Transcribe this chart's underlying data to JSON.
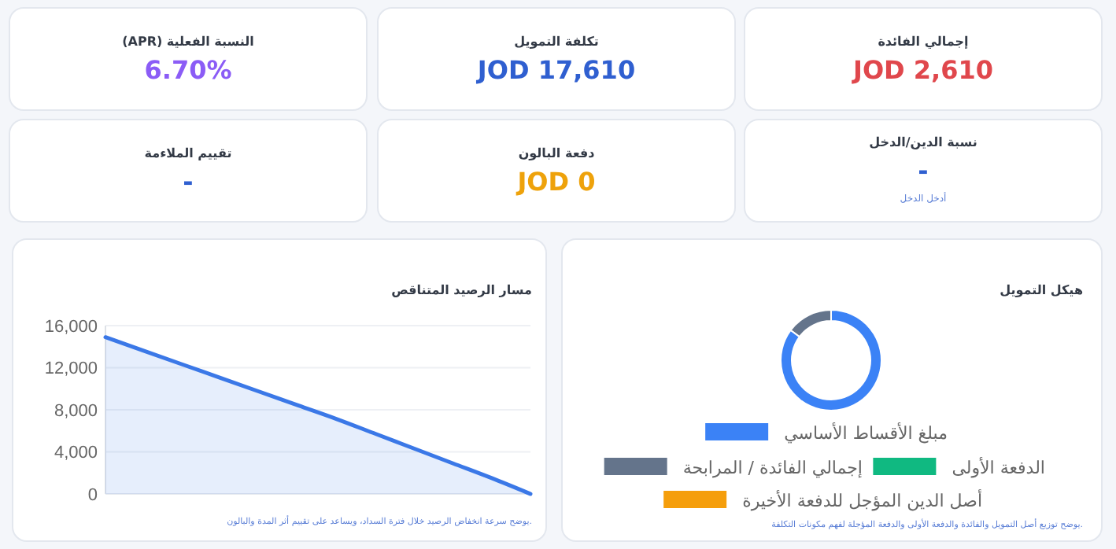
{
  "chart_data": [
    {
      "type": "other",
      "title": "إجمالي الفائدة",
      "annotations": [
        "JOD 2,610"
      ]
    },
    {
      "type": "other",
      "title": "تكلفة التمويل",
      "annotations": [
        "JOD 17,610"
      ]
    },
    {
      "type": "other",
      "title": "النسبة الفعلية (APR)",
      "annotations": [
        "6.70%"
      ]
    },
    {
      "type": "other",
      "title": "نسبة الدين/الدخل",
      "annotations": [
        "-",
        "أدخل الدخل"
      ]
    },
    {
      "type": "other",
      "title": "دفعة البالون",
      "annotations": [
        "JOD 0"
      ]
    },
    {
      "type": "other",
      "title": "تقييم الملاءمة",
      "annotations": [
        "-"
      ]
    },
    {
      "type": "area",
      "title": "مسار الرصيد المتناقص",
      "categories": [
        null,
        null,
        null,
        null,
        null,
        null,
        null,
        null,
        null,
        null,
        null,
        null
      ],
      "values": [
        14900,
        13600,
        12300,
        11000,
        9700,
        8400,
        7100,
        5700,
        4300,
        2900,
        1500,
        0
      ],
      "color": "#3b78e7",
      "ylim": [
        0,
        16000
      ],
      "yticks": [
        {
          "value": 0,
          "label": "0"
        },
        {
          "value": 4000,
          "label": "4,000"
        },
        {
          "value": 8000,
          "label": "8,000"
        },
        {
          "value": 12000,
          "label": "12,000"
        },
        {
          "value": 16000,
          "label": "16,000"
        }
      ],
      "grid": "y",
      "tick_labels": "y",
      "legend": false,
      "annotations": [
        "يوضح سرعة انخفاض الرصيد خلال فترة السداد، ويساعد على تقييم أثر المدة والبالون."
      ]
    },
    {
      "type": "donut",
      "title": "هيكل التمويل",
      "categories": [
        "مبلغ الأقساط الأساسي",
        "الدفعة الأولى",
        "إجمالي الفائدة / المرابحة",
        "أصل الدين المؤجل للدفعة الأخيرة"
      ],
      "values": [
        85.2,
        0,
        14.8,
        0
      ],
      "colors": [
        "#3b82f6",
        "#10b981",
        "#64748b",
        "#f59e0b"
      ],
      "legend": "bottom",
      "annotations": [
        "يوضح توزيع أصل التمويل والفائدة والدفعة الأولى والدفعة المؤجلة لفهم مكونات التكلفة."
      ]
    }
  ]
}
